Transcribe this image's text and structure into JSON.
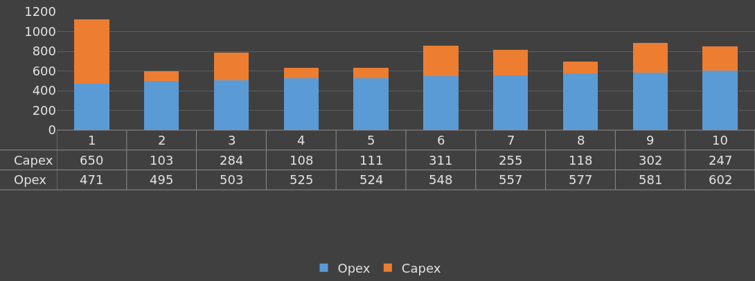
{
  "chart_data": {
    "type": "bar",
    "stacked": true,
    "categories": [
      "1",
      "2",
      "3",
      "4",
      "5",
      "6",
      "7",
      "8",
      "9",
      "10"
    ],
    "series": [
      {
        "name": "Opex",
        "color": "#5b9bd5",
        "values": [
          471,
          495,
          503,
          525,
          524,
          548,
          557,
          577,
          581,
          602
        ]
      },
      {
        "name": "Capex",
        "color": "#ed7d31",
        "values": [
          650,
          103,
          284,
          108,
          111,
          311,
          255,
          118,
          302,
          247
        ]
      }
    ],
    "ylim": [
      0,
      1200
    ],
    "yticks": [
      0,
      200,
      400,
      600,
      800,
      1000,
      1200
    ],
    "grid": "y",
    "legend": "bottom",
    "data_labels": true
  }
}
